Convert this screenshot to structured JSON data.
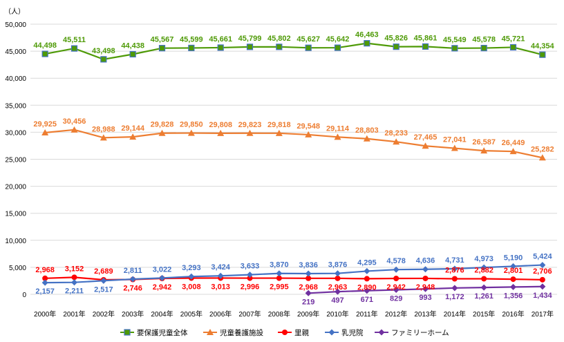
{
  "chart_data": {
    "type": "line",
    "title": "",
    "ylabel": "（人）",
    "xlabel": "",
    "ylim": [
      0,
      50000
    ],
    "yticks": [
      "0",
      "5,000",
      "10,000",
      "15,000",
      "20,000",
      "25,000",
      "30,000",
      "35,000",
      "40,000",
      "45,000",
      "50,000"
    ],
    "grid": true,
    "legend_position": "bottom",
    "categories": [
      "2000年",
      "2001年",
      "2002年",
      "2003年",
      "2004年",
      "2005年",
      "2006年",
      "2007年",
      "2008年",
      "2009年",
      "2010年",
      "2011年",
      "2012年",
      "2013年",
      "2014年",
      "2015年",
      "2016年",
      "2017年"
    ],
    "series": [
      {
        "name": "要保護児童全体",
        "color": "#4e9a06",
        "marker": "square",
        "values": [
          44498,
          45511,
          43498,
          44438,
          45567,
          45599,
          45661,
          45799,
          45802,
          45627,
          45642,
          46463,
          45826,
          45861,
          45549,
          45578,
          45721,
          44354
        ]
      },
      {
        "name": "児童養護施設",
        "color": "#ed7d31",
        "marker": "triangle",
        "values": [
          29925,
          30456,
          28988,
          29144,
          29828,
          29850,
          29808,
          29823,
          29818,
          29548,
          29114,
          28803,
          28233,
          27465,
          27041,
          26587,
          26449,
          25282
        ]
      },
      {
        "name": "里親",
        "color": "#ff0000",
        "marker": "circle",
        "values": [
          2968,
          3152,
          2689,
          2746,
          2942,
          3008,
          3013,
          2996,
          2995,
          2968,
          2963,
          2890,
          2942,
          2948,
          2876,
          2882,
          2801,
          2706
        ]
      },
      {
        "name": "乳児院",
        "color": "#4472c4",
        "marker": "diamond",
        "values": [
          2157,
          2211,
          2517,
          2811,
          3022,
          3293,
          3424,
          3633,
          3870,
          3836,
          3876,
          4295,
          4578,
          4636,
          4731,
          4973,
          5190,
          5424
        ]
      },
      {
        "name": "ファミリーホーム",
        "color": "#7030a0",
        "marker": "diamond",
        "values": [
          null,
          null,
          null,
          null,
          null,
          null,
          null,
          null,
          null,
          219,
          497,
          671,
          829,
          993,
          1172,
          1261,
          1356,
          1434
        ]
      }
    ]
  }
}
